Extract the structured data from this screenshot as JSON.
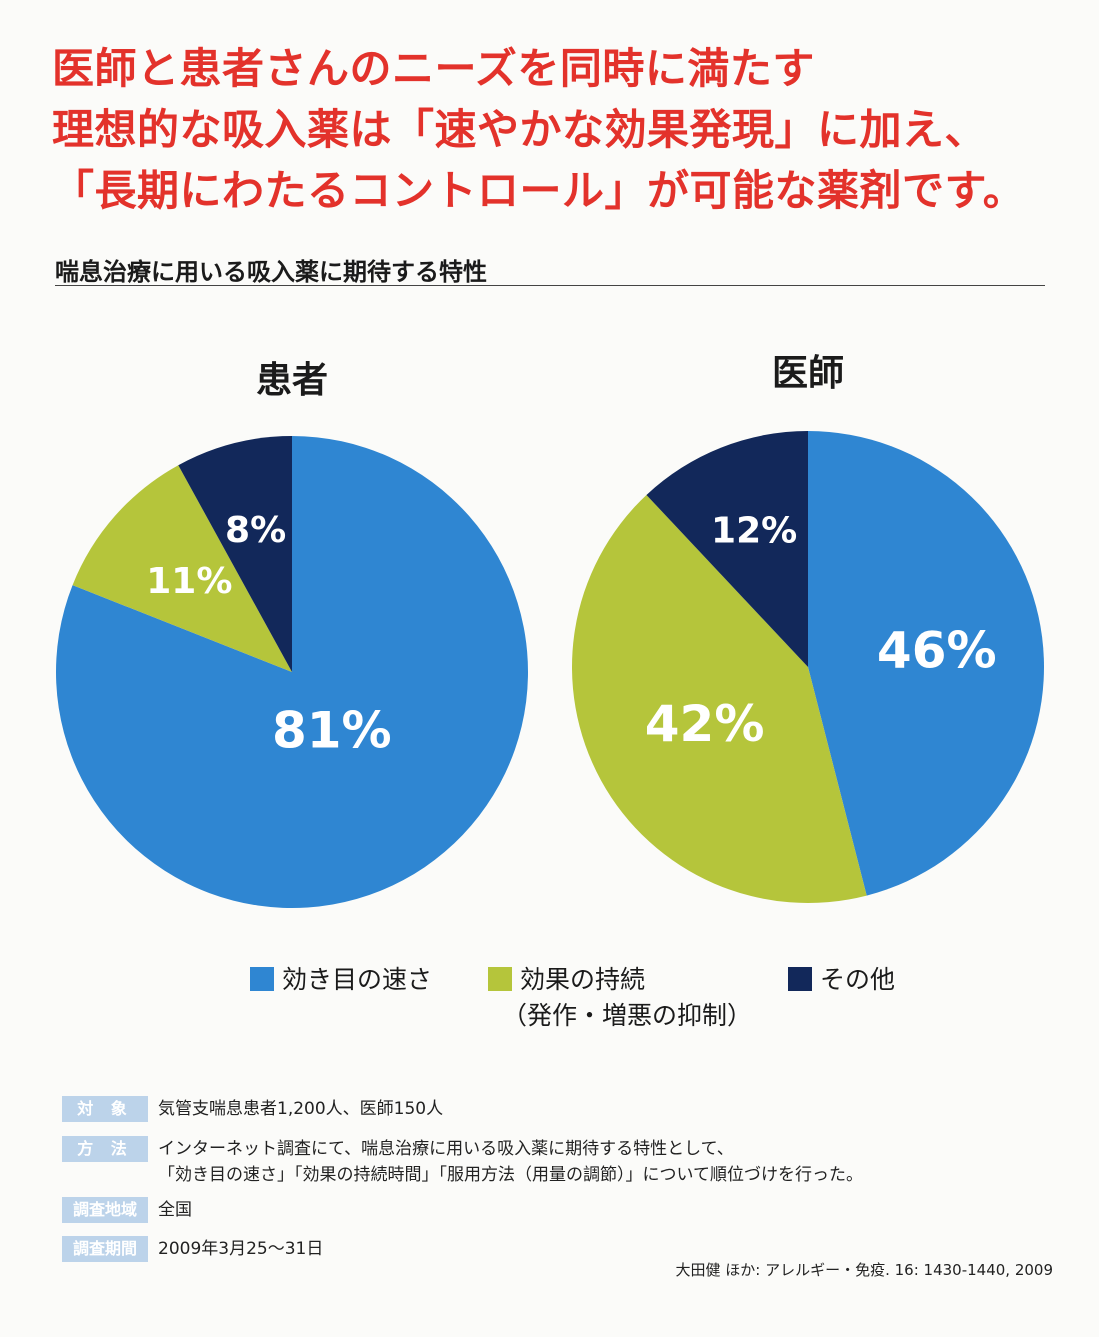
{
  "headline": {
    "line1": "医師と患者さんのニーズを同時に満たす",
    "line2": "理想的な吸入薬は「速やかな効果発現」に加え、",
    "line3": "「長期にわたるコントロール」が可能な薬剤です。"
  },
  "subtitle": "喘息治療に用いる吸入薬に期待する特性",
  "colors": {
    "speed": "#2f86d2",
    "duration": "#b5c53b",
    "other": "#12285a",
    "headline": "#e3322b"
  },
  "chart_data": [
    {
      "type": "pie",
      "title": "患者",
      "categories": [
        "効き目の速さ",
        "効果の持続（発作・増悪の抑制）",
        "その他"
      ],
      "values": [
        81,
        11,
        8
      ],
      "labels": [
        "81%",
        "11%",
        "8%"
      ]
    },
    {
      "type": "pie",
      "title": "医師",
      "categories": [
        "効き目の速さ",
        "効果の持続（発作・増悪の抑制）",
        "その他"
      ],
      "values": [
        46,
        42,
        12
      ],
      "labels": [
        "46%",
        "42%",
        "12%"
      ]
    }
  ],
  "legend": {
    "speed": "効き目の速さ",
    "duration": "効果の持続",
    "duration_sub": "（発作・増悪の抑制）",
    "other": "その他"
  },
  "meta": {
    "target_label": "対 象",
    "target_text": "気管支喘息患者1,200人、医師150人",
    "method_label": "方 法",
    "method_text1": "インターネット調査にて、喘息治療に用いる吸入薬に期待する特性として、",
    "method_text2": "「効き目の速さ」「効果の持続時間」「服用方法（用量の調節）」について順位づけを行った。",
    "region_label": "調査地域",
    "region_text": "全国",
    "period_label": "調査期間",
    "period_text": "2009年3月25〜31日"
  },
  "citation": "大田健 ほか: アレルギー・免疫. 16: 1430-1440, 2009"
}
